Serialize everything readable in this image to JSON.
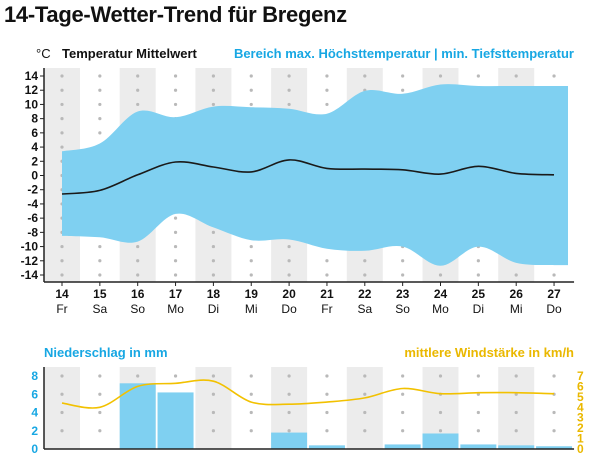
{
  "title": "14-Tage-Wetter-Trend für Bregenz",
  "colors": {
    "band": "#7fd0f1",
    "mean_line": "#1a1a1a",
    "precip_bar": "#7fd0f1",
    "wind_line": "#f2c100",
    "stripe": "#ececec",
    "dot": "#b9b9b9",
    "blue_text": "#17a7e3",
    "yellow_text": "#eab800"
  },
  "chart_data": [
    {
      "type": "area",
      "unit_label": "°C",
      "legend_left": "Temperatur Mittelwert",
      "legend_right": "Bereich max. Höchsttemperatur | min. Tiefsttemperatur",
      "ylim": [
        -14,
        14
      ],
      "yticks": [
        "14",
        "12",
        "10",
        "8",
        "6",
        "4",
        "2",
        "0",
        "-2",
        "-4",
        "-6",
        "-8",
        "-10",
        "-12",
        "-14"
      ],
      "days": [
        {
          "num": "14",
          "wd": "Fr"
        },
        {
          "num": "15",
          "wd": "Sa"
        },
        {
          "num": "16",
          "wd": "So"
        },
        {
          "num": "17",
          "wd": "Mo"
        },
        {
          "num": "18",
          "wd": "Di"
        },
        {
          "num": "19",
          "wd": "Mi"
        },
        {
          "num": "20",
          "wd": "Do"
        },
        {
          "num": "21",
          "wd": "Fr"
        },
        {
          "num": "22",
          "wd": "Sa"
        },
        {
          "num": "23",
          "wd": "So"
        },
        {
          "num": "24",
          "wd": "Mo"
        },
        {
          "num": "25",
          "wd": "Di"
        },
        {
          "num": "26",
          "wd": "Mi"
        },
        {
          "num": "27",
          "wd": "Do"
        }
      ],
      "series": [
        {
          "name": "Temperatur Mittelwert",
          "values": [
            -2.6,
            -2.1,
            0.1,
            1.9,
            1.2,
            0.5,
            2.2,
            1.0,
            0.9,
            0.8,
            0.2,
            1.3,
            0.3,
            0.1
          ]
        },
        {
          "name": "max. Höchsttemperatur",
          "values": [
            3.4,
            4.5,
            9.0,
            8.2,
            9.7,
            9.6,
            9.4,
            8.7,
            11.9,
            11.5,
            12.8,
            12.6,
            12.6,
            12.6
          ]
        },
        {
          "name": "min. Tiefsttemperatur",
          "values": [
            -8.5,
            -8.7,
            -9.3,
            -5.4,
            -7.3,
            -9.1,
            -9.0,
            -10.3,
            -10.6,
            -10.0,
            -12.7,
            -10.0,
            -12.3,
            -12.6
          ]
        }
      ]
    },
    {
      "type": "bar",
      "legend_left": "Niederschlag in mm",
      "legend_right": "mittlere Windstärke in km/h",
      "ylim_left": [
        0,
        8
      ],
      "yticks_left": [
        "8",
        "6",
        "4",
        "2",
        "0"
      ],
      "ylim_right": [
        0,
        7
      ],
      "yticks_right": [
        "7",
        "6",
        "5",
        "4",
        "3",
        "2",
        "1",
        "0"
      ],
      "series": [
        {
          "name": "Niederschlag in mm",
          "values": [
            0,
            0,
            7.2,
            6.2,
            0,
            0,
            1.8,
            0.4,
            0,
            0.5,
            1.7,
            0.5,
            0.4,
            0.3
          ]
        },
        {
          "name": "mittlere Windstärke in km/h",
          "values": [
            4.4,
            4.0,
            6.0,
            6.3,
            6.5,
            4.5,
            4.3,
            4.5,
            4.9,
            5.8,
            5.3,
            5.4,
            5.4,
            5.3
          ]
        }
      ]
    }
  ]
}
